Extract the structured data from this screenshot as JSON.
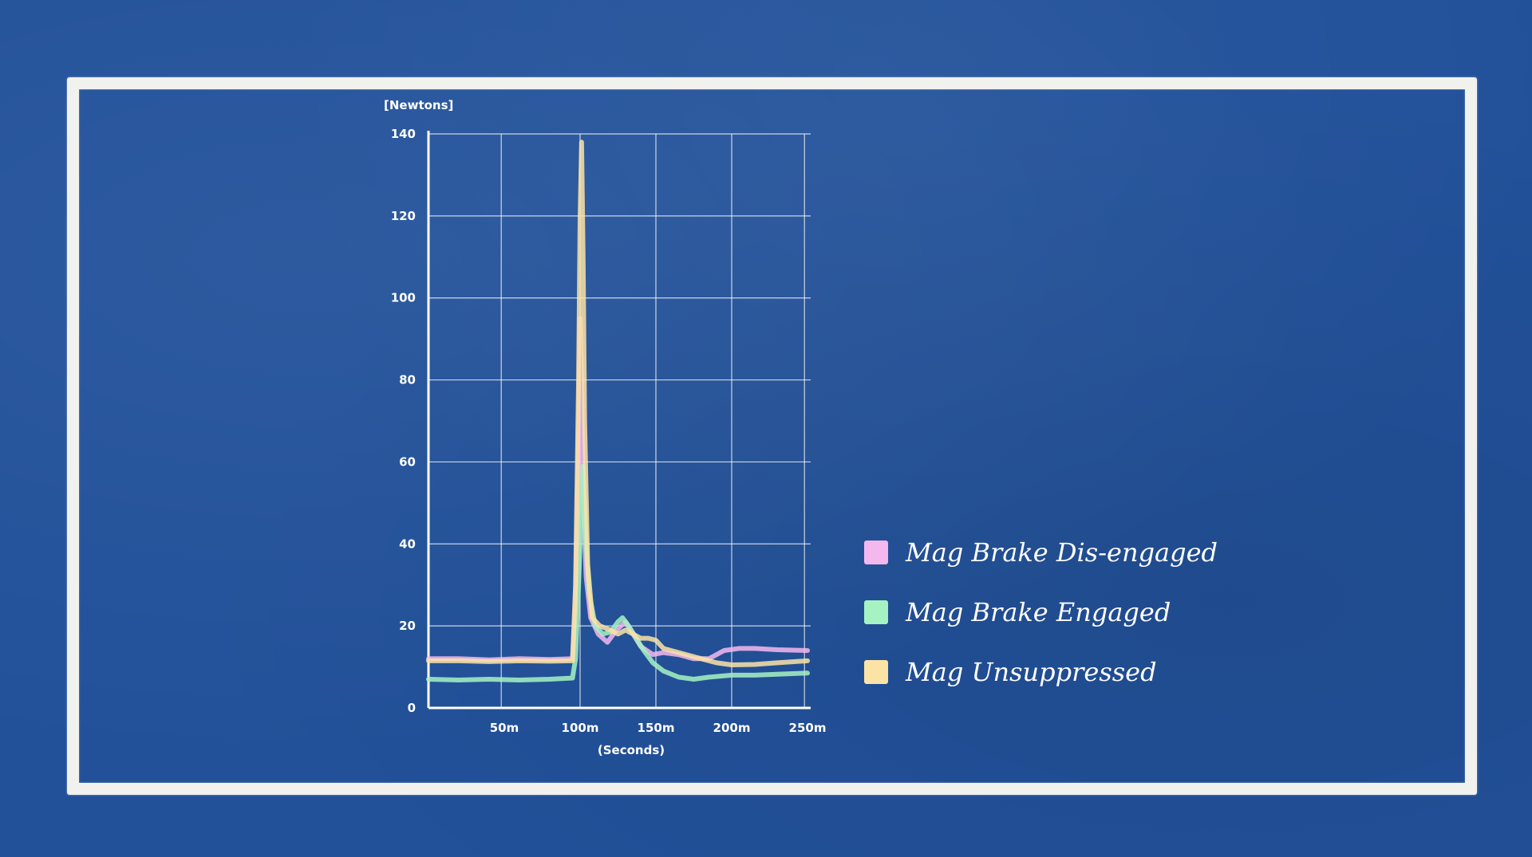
{
  "chart_data": {
    "type": "line",
    "ylabel": "[Newtons]",
    "xlabel": "(Seconds)",
    "ylim": [
      0,
      140
    ],
    "xlim": [
      0,
      250
    ],
    "y_ticks": [
      0,
      20,
      40,
      60,
      80,
      100,
      120,
      140
    ],
    "x_ticks": [
      {
        "value": 50,
        "label": "50m"
      },
      {
        "value": 100,
        "label": "100m"
      },
      {
        "value": 150,
        "label": "150m"
      },
      {
        "value": 200,
        "label": "200m"
      },
      {
        "value": 250,
        "label": "250m"
      }
    ],
    "x_gridlines": [
      0,
      48,
      100,
      150,
      200,
      248
    ],
    "y_gridlines": [
      0,
      20,
      40,
      60,
      80,
      100,
      120,
      140
    ],
    "grid": true,
    "legend_position": "right",
    "series": [
      {
        "name": "Mag Brake Dis-engaged",
        "color": "#f4b8ee",
        "points": [
          [
            0,
            12
          ],
          [
            20,
            12
          ],
          [
            40,
            11.7
          ],
          [
            60,
            12
          ],
          [
            80,
            11.8
          ],
          [
            95,
            12
          ],
          [
            97,
            25
          ],
          [
            99,
            65
          ],
          [
            100,
            95
          ],
          [
            101,
            80
          ],
          [
            102,
            52
          ],
          [
            104,
            32
          ],
          [
            107,
            22
          ],
          [
            112,
            18
          ],
          [
            118,
            16
          ],
          [
            124,
            19
          ],
          [
            130,
            21
          ],
          [
            135,
            18
          ],
          [
            140,
            15
          ],
          [
            148,
            13
          ],
          [
            155,
            13.5
          ],
          [
            165,
            13
          ],
          [
            175,
            12
          ],
          [
            185,
            12
          ],
          [
            190,
            13
          ],
          [
            195,
            14
          ],
          [
            205,
            14.5
          ],
          [
            215,
            14.5
          ],
          [
            230,
            14.2
          ],
          [
            250,
            14
          ]
        ]
      },
      {
        "name": "Mag Brake Engaged",
        "color": "#a6f2c3",
        "points": [
          [
            0,
            7
          ],
          [
            20,
            6.8
          ],
          [
            40,
            7
          ],
          [
            60,
            6.8
          ],
          [
            80,
            7
          ],
          [
            95,
            7.3
          ],
          [
            97,
            12
          ],
          [
            99,
            30
          ],
          [
            101,
            50
          ],
          [
            102,
            59
          ],
          [
            104,
            40
          ],
          [
            106,
            28
          ],
          [
            110,
            20
          ],
          [
            115,
            18
          ],
          [
            120,
            18.5
          ],
          [
            125,
            21
          ],
          [
            128,
            22
          ],
          [
            132,
            20
          ],
          [
            137,
            17
          ],
          [
            142,
            14
          ],
          [
            148,
            11
          ],
          [
            155,
            9
          ],
          [
            165,
            7.5
          ],
          [
            175,
            7
          ],
          [
            185,
            7.5
          ],
          [
            200,
            8
          ],
          [
            215,
            8
          ],
          [
            230,
            8.2
          ],
          [
            250,
            8.5
          ]
        ]
      },
      {
        "name": "Mag Unsuppressed",
        "color": "#fbe3a6",
        "points": [
          [
            0,
            11.5
          ],
          [
            20,
            11.5
          ],
          [
            40,
            11.3
          ],
          [
            60,
            11.5
          ],
          [
            80,
            11.4
          ],
          [
            95,
            11.5
          ],
          [
            97,
            30
          ],
          [
            99,
            80
          ],
          [
            100,
            120
          ],
          [
            101,
            138
          ],
          [
            102,
            110
          ],
          [
            103,
            70
          ],
          [
            105,
            35
          ],
          [
            108,
            22
          ],
          [
            113,
            20
          ],
          [
            120,
            19
          ],
          [
            125,
            18
          ],
          [
            130,
            19
          ],
          [
            135,
            18
          ],
          [
            140,
            17
          ],
          [
            145,
            17
          ],
          [
            150,
            16.5
          ],
          [
            155,
            14.5
          ],
          [
            160,
            14
          ],
          [
            170,
            13
          ],
          [
            180,
            12
          ],
          [
            190,
            11
          ],
          [
            200,
            10.5
          ],
          [
            215,
            10.6
          ],
          [
            230,
            11
          ],
          [
            250,
            11.5
          ]
        ]
      }
    ]
  }
}
